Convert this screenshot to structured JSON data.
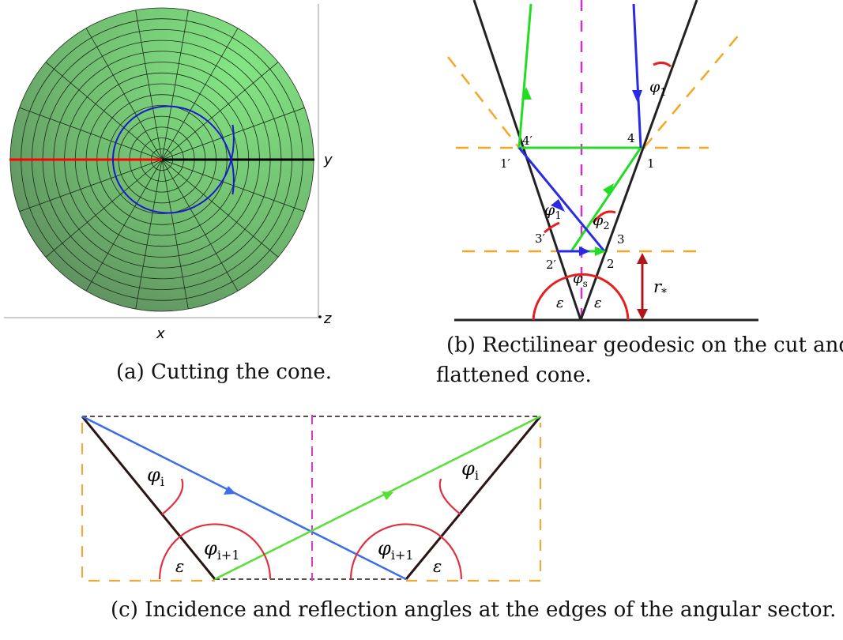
{
  "panel_a": {
    "axis_y": "y",
    "axis_z": "z",
    "axis_x": "x",
    "caption": "(a) Cutting the cone.",
    "colors": {
      "cone_light": "#7cdc7c",
      "cone_dark": "#5e8f5e",
      "cut": "#ff0000",
      "geodesic": "#1a1acc",
      "axis": "#000000"
    }
  },
  "panel_b": {
    "label_phi1_top": "φ",
    "label_phi1_top_sub": "1",
    "label_4p": "4′",
    "label_4": "4",
    "label_1p": "1′",
    "label_1": "1",
    "label_phi1_mid": "φ",
    "label_phi1_mid_sub": "1",
    "label_phi2": "φ",
    "label_phi2_sub": "2",
    "label_3p": "3′",
    "label_3": "3",
    "label_2p": "2′",
    "label_2": "2",
    "label_phis": "φ",
    "label_phis_sub": "s",
    "label_eps_left": "ε",
    "label_eps_right": "ε",
    "label_rstar": "r",
    "label_rstar_sub": "*",
    "caption_line1": "(b) Rectilinear geodesic on the cut and",
    "caption_line2": "flattened cone.",
    "colors": {
      "edge": "#222222",
      "green": "#22dd22",
      "blue": "#2a2ae6",
      "orange": "#f5a623",
      "magenta": "#cc33cc",
      "red": "#e62020",
      "darkred": "#b01818"
    }
  },
  "panel_c": {
    "label_phi_i_left": "φ",
    "label_phi_i_left_sub": "i",
    "label_phi_i_right": "φ",
    "label_phi_i_right_sub": "i",
    "label_phi_ip1_left": "φ",
    "label_phi_ip1_left_sub": "i+1",
    "label_phi_ip1_right": "φ",
    "label_phi_ip1_right_sub": "i+1",
    "label_eps_left": "ε",
    "label_eps_right": "ε",
    "caption": "(c) Incidence and reflection angles at the edges of the angular sector.",
    "colors": {
      "edge": "#2a1414",
      "blue": "#3b6ee8",
      "green": "#55e033",
      "orange": "#f0a93a",
      "magenta": "#d23ad2",
      "red": "#e03040",
      "dash": "#4a3030"
    }
  }
}
